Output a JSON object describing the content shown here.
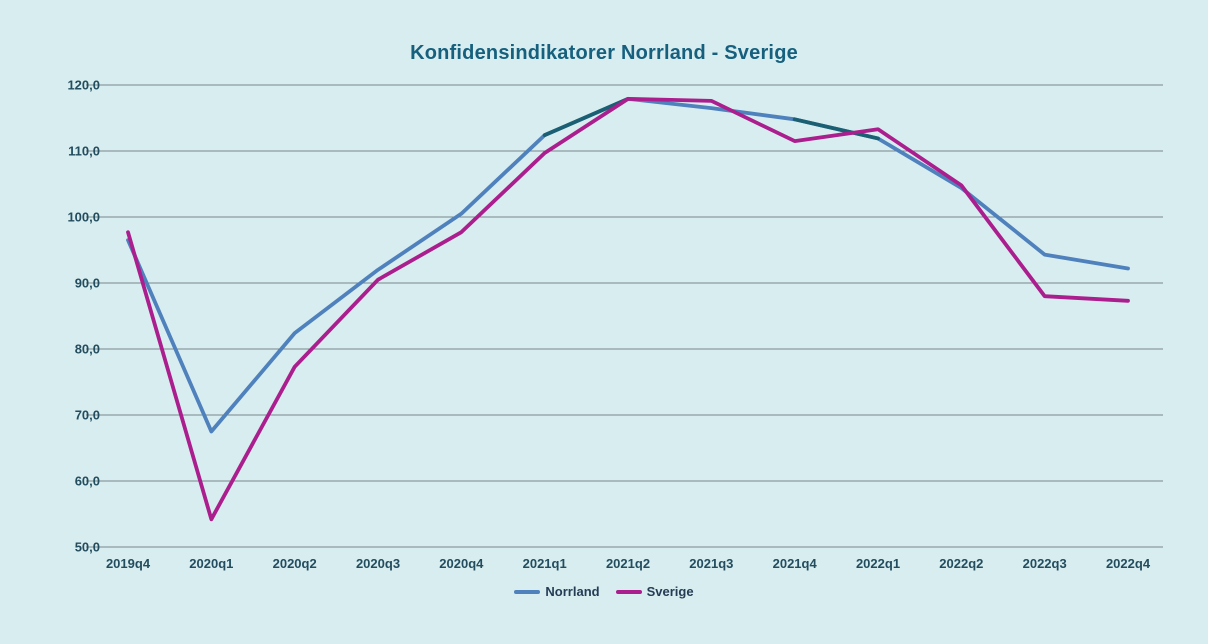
{
  "colors": {
    "background": "#d8edf0",
    "gridline": "#7a868c",
    "title_text": "#16607e",
    "axis_text": "#234d5e",
    "legend_text": "#253c55"
  },
  "chart_data": {
    "type": "line",
    "title": "Konfidensindikatorer Norrland - Sverige",
    "categories": [
      "2019q4",
      "2020q1",
      "2020q2",
      "2020q3",
      "2020q4",
      "2021q1",
      "2021q2",
      "2021q3",
      "2021q4",
      "2022q1",
      "2022q2",
      "2022q3",
      "2022q4"
    ],
    "series": [
      {
        "name": "Norrland",
        "color": "#4f81bd",
        "values": [
          96.5,
          67.5,
          82.4,
          92.0,
          100.5,
          112.4,
          117.9,
          116.5,
          114.8,
          111.9,
          104.4,
          94.3,
          92.2
        ]
      },
      {
        "name": "Sverige",
        "color": "#ab1e8e",
        "values": [
          97.7,
          54.2,
          77.3,
          90.5,
          97.7,
          109.7,
          117.9,
          117.6,
          111.5,
          113.3,
          104.8,
          88.0,
          87.3
        ]
      }
    ],
    "norrland_dark_overlay": {
      "color": "#1b5f73",
      "spans": [
        [
          "2021q1",
          "2021q2"
        ],
        [
          "2021q4",
          "2022q1"
        ]
      ]
    },
    "y_axis": {
      "min": 50,
      "max": 120,
      "step": 10,
      "tick_labels": [
        "50,0",
        "60,0",
        "70,0",
        "80,0",
        "90,0",
        "100,0",
        "110,0",
        "120,0"
      ]
    },
    "grid": true,
    "legend_position": "bottom"
  }
}
